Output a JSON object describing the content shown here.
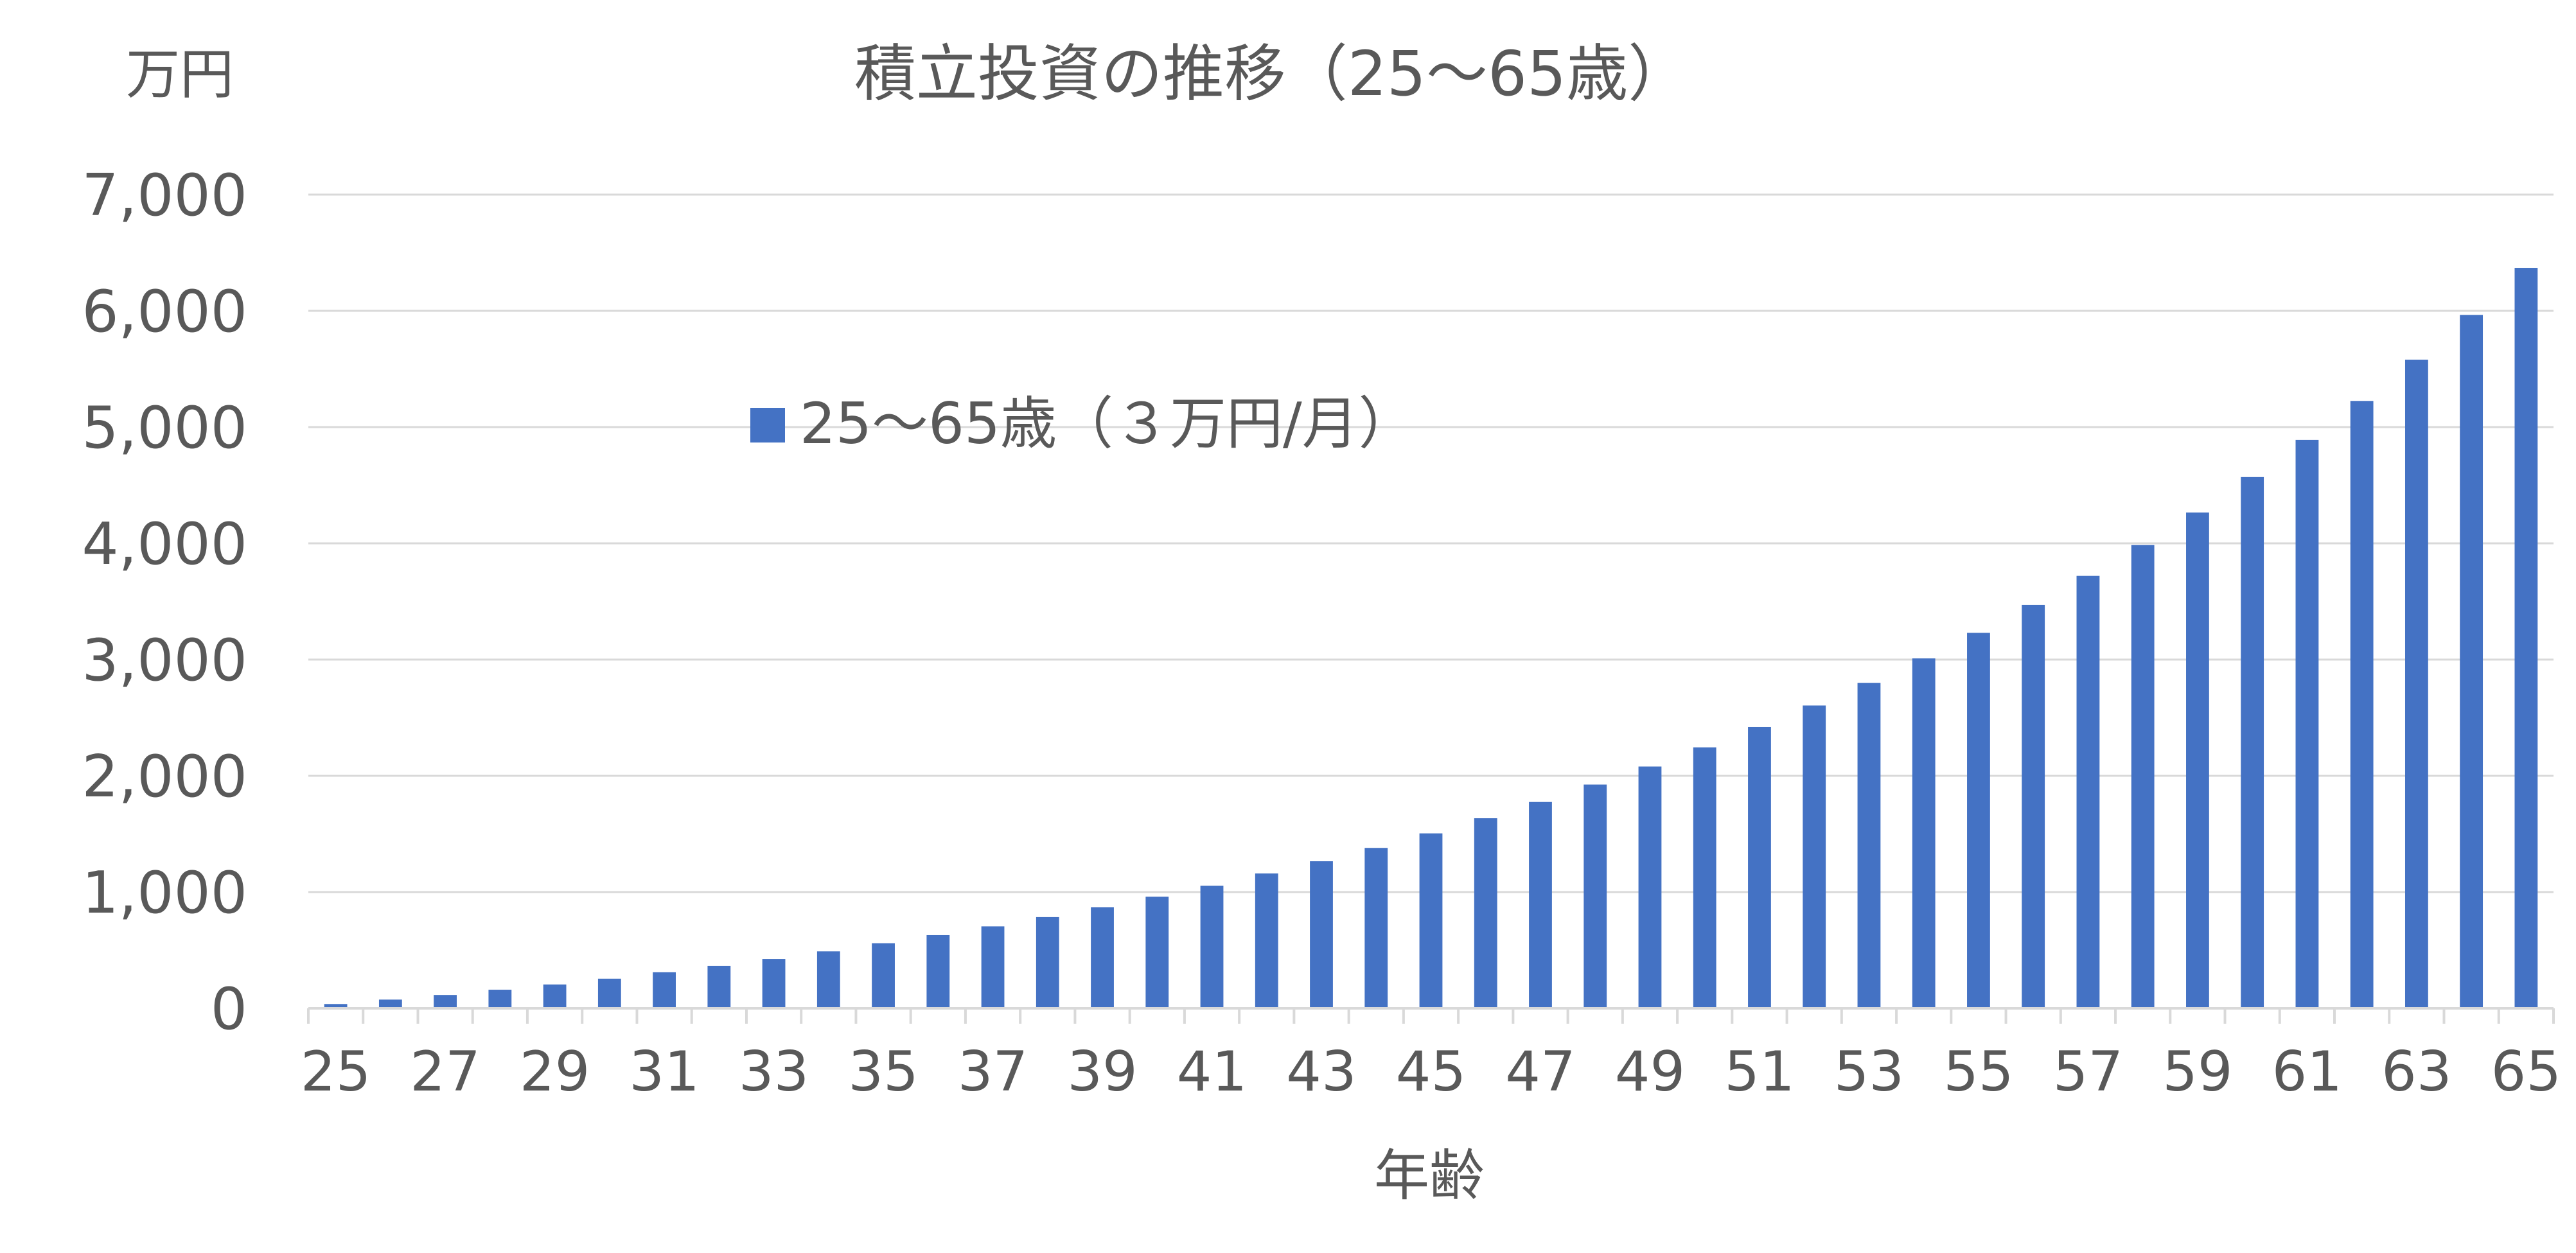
{
  "chart_data": {
    "type": "bar",
    "title": "積立投資の推移（25～65歳）",
    "unit_label": "万円",
    "xlabel": "年齢",
    "ylabel": "万円",
    "ylim": [
      0,
      7000
    ],
    "y_ticks": [
      0,
      1000,
      2000,
      3000,
      4000,
      5000,
      6000,
      7000
    ],
    "y_tick_labels": [
      "0",
      "1,000",
      "2,000",
      "3,000",
      "4,000",
      "5,000",
      "6,000",
      "7,000"
    ],
    "x_tick_labels": [
      "25",
      "27",
      "29",
      "31",
      "33",
      "35",
      "37",
      "39",
      "41",
      "43",
      "45",
      "47",
      "49",
      "51",
      "53",
      "55",
      "57",
      "59",
      "61",
      "63",
      "65"
    ],
    "categories": [
      25,
      26,
      27,
      28,
      29,
      30,
      31,
      32,
      33,
      34,
      35,
      36,
      37,
      38,
      39,
      40,
      41,
      42,
      43,
      44,
      45,
      46,
      47,
      48,
      49,
      50,
      51,
      52,
      53,
      54,
      55,
      56,
      57,
      58,
      59,
      60,
      61,
      62,
      63,
      64,
      65
    ],
    "grid": true,
    "legend_position": "upper-left-inside",
    "colors": {
      "bar": "#4472C4",
      "grid": "#D9D9D9",
      "text": "#595959",
      "axis": "#D9D9D9"
    },
    "series": [
      {
        "name": "25～65歳（３万円/月）",
        "values": [
          37,
          75,
          115,
          160,
          205,
          255,
          310,
          365,
          425,
          490,
          560,
          630,
          705,
          785,
          870,
          960,
          1055,
          1160,
          1265,
          1380,
          1505,
          1635,
          1775,
          1925,
          2080,
          2245,
          2420,
          2605,
          2800,
          3010,
          3230,
          3470,
          3720,
          3985,
          4265,
          4570,
          4890,
          5225,
          5580,
          5965,
          6370
        ]
      }
    ]
  }
}
